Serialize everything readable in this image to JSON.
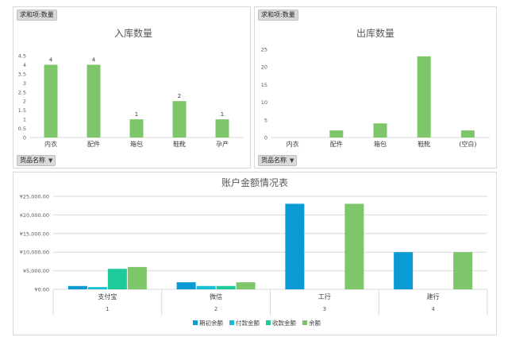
{
  "colors": {
    "green": "#7ec66a",
    "blue": "#0a9bd4",
    "teal": "#17bfd0",
    "mint": "#1ec99a",
    "light_green": "#7ec66a",
    "gridline": "#d9d9d9",
    "axis_text": "#595959"
  },
  "pivot": {
    "value_field_label": "求和项:数量",
    "category_field_label": "货品名称",
    "dropdown_icon": "caret-down-icon"
  },
  "chart_data": [
    {
      "type": "bar",
      "title": "入库数量",
      "categories": [
        "内衣",
        "配件",
        "箱包",
        "鞋靴",
        "孕产"
      ],
      "values": [
        4,
        4,
        1,
        2,
        1
      ],
      "data_labels": [
        "4",
        "4",
        "1",
        "2",
        "1"
      ],
      "yticks": [
        "0",
        "0.5",
        "1",
        "1.5",
        "2",
        "2.5",
        "3",
        "3.5",
        "4",
        "4.5"
      ],
      "ylim": [
        0,
        4.5
      ],
      "grid": false,
      "xlabel": "",
      "ylabel": ""
    },
    {
      "type": "bar",
      "title": "出库数量",
      "categories": [
        "内衣",
        "配件",
        "箱包",
        "鞋靴",
        "(空白)"
      ],
      "values": [
        0,
        2,
        4,
        23,
        2
      ],
      "yticks": [
        "0",
        "5",
        "10",
        "15",
        "20",
        "25"
      ],
      "ylim": [
        0,
        25
      ],
      "grid": false,
      "xlabel": "",
      "ylabel": ""
    },
    {
      "type": "bar",
      "title": "账户金额情况表",
      "categories": [
        "支付宝",
        "微信",
        "工行",
        "建行"
      ],
      "subcategories": [
        "1",
        "2",
        "3",
        "4"
      ],
      "yticks": [
        "¥0.00",
        "¥5,000.00",
        "¥10,000.00",
        "¥15,000.00",
        "¥20,000.00",
        "¥25,000.00"
      ],
      "ylim": [
        0,
        25000
      ],
      "grid": true,
      "legend_position": "bottom",
      "series": [
        {
          "name": "期初余额",
          "values": [
            900,
            1900,
            23000,
            10000
          ]
        },
        {
          "name": "付款金额",
          "values": [
            600,
            900,
            0,
            0
          ]
        },
        {
          "name": "收款金额",
          "values": [
            5500,
            900,
            0,
            0
          ]
        },
        {
          "name": "余额",
          "values": [
            6000,
            1900,
            23000,
            10000
          ]
        }
      ]
    }
  ]
}
